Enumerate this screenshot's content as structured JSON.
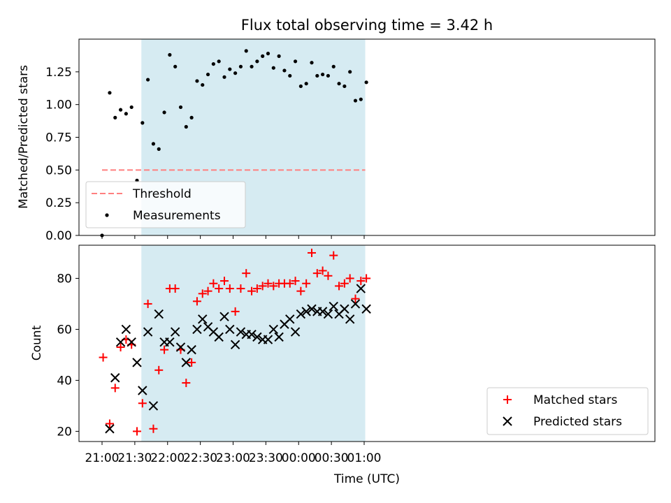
{
  "chart_data": [
    {
      "type": "scatter",
      "title": "Flux total observing time = 3.42 h",
      "xlabel": "",
      "ylabel": "Matched/Predicted stars",
      "ylim": [
        0,
        1.5
      ],
      "yticks": [
        "0.00",
        "0.25",
        "0.50",
        "0.75",
        "1.00",
        "1.25"
      ],
      "shaded_region": {
        "x": [
          "21:36",
          "01:01"
        ],
        "color": "#add8e6"
      },
      "threshold": {
        "name": "Threshold",
        "value": 0.5,
        "x": [
          "21:00",
          "01:01"
        ],
        "color": "#ff7f7f",
        "style": "dashed"
      },
      "legend": {
        "placement": "lower-left",
        "entries": [
          "Threshold",
          "Measurements"
        ]
      },
      "series": [
        {
          "name": "Measurements",
          "color": "#000000",
          "marker": "dot",
          "x": [
            "21:00",
            "21:07",
            "21:12",
            "21:17",
            "21:22",
            "21:27",
            "21:32",
            "21:37",
            "21:42",
            "21:47",
            "21:52",
            "21:57",
            "22:02",
            "22:07",
            "22:12",
            "22:17",
            "22:22",
            "22:27",
            "22:32",
            "22:37",
            "22:42",
            "22:47",
            "22:52",
            "22:57",
            "23:02",
            "23:07",
            "23:12",
            "23:17",
            "23:22",
            "23:27",
            "23:32",
            "23:37",
            "23:42",
            "23:47",
            "23:52",
            "23:57",
            "00:02",
            "00:07",
            "00:12",
            "00:17",
            "00:22",
            "00:27",
            "00:32",
            "00:37",
            "00:42",
            "00:47",
            "00:52",
            "00:57",
            "01:02"
          ],
          "values": [
            0.0,
            1.09,
            0.9,
            0.96,
            0.93,
            0.98,
            0.42,
            0.86,
            1.19,
            0.7,
            0.66,
            0.94,
            1.38,
            1.29,
            0.98,
            0.83,
            0.9,
            1.18,
            1.15,
            1.23,
            1.31,
            1.33,
            1.21,
            1.27,
            1.24,
            1.29,
            1.41,
            1.29,
            1.33,
            1.37,
            1.39,
            1.28,
            1.37,
            1.26,
            1.22,
            1.33,
            1.14,
            1.16,
            1.32,
            1.22,
            1.23,
            1.22,
            1.29,
            1.16,
            1.14,
            1.25,
            1.03,
            1.04,
            1.17
          ]
        }
      ]
    },
    {
      "type": "scatter",
      "xlabel": "Time (UTC)",
      "ylabel": "Count",
      "ylim": [
        16,
        93
      ],
      "yticks": [
        "20",
        "40",
        "60",
        "80"
      ],
      "xticks": [
        "21:00",
        "21:30",
        "22:00",
        "22:30",
        "23:00",
        "23:30",
        "00:00",
        "00:30",
        "01:00"
      ],
      "shaded_region": {
        "x": [
          "21:36",
          "01:01"
        ],
        "color": "#add8e6"
      },
      "legend": {
        "placement": "lower-right",
        "entries": [
          "Matched stars",
          "Predicted stars"
        ]
      },
      "series": [
        {
          "name": "Matched stars",
          "color": "#ff0000",
          "marker": "plus",
          "x": [
            "21:01",
            "21:07",
            "21:12",
            "21:17",
            "21:22",
            "21:27",
            "21:32",
            "21:37",
            "21:42",
            "21:47",
            "21:52",
            "21:57",
            "22:02",
            "22:07",
            "22:12",
            "22:17",
            "22:22",
            "22:27",
            "22:32",
            "22:37",
            "22:42",
            "22:47",
            "22:52",
            "22:57",
            "23:02",
            "23:07",
            "23:12",
            "23:17",
            "23:22",
            "23:27",
            "23:32",
            "23:37",
            "23:42",
            "23:47",
            "23:52",
            "23:57",
            "00:02",
            "00:07",
            "00:12",
            "00:17",
            "00:22",
            "00:27",
            "00:32",
            "00:37",
            "00:42",
            "00:47",
            "00:52",
            "00:57",
            "01:02"
          ],
          "values": [
            49,
            23,
            37,
            53,
            56,
            54,
            20,
            31,
            70,
            21,
            44,
            52,
            76,
            76,
            52,
            39,
            47,
            71,
            74,
            75,
            78,
            76,
            79,
            76,
            67,
            76,
            82,
            75,
            76,
            77,
            78,
            77,
            78,
            78,
            78,
            79,
            75,
            78,
            90,
            82,
            83,
            81,
            89,
            77,
            78,
            80,
            72,
            79,
            80
          ]
        },
        {
          "name": "Predicted stars",
          "color": "#000000",
          "marker": "x",
          "x": [
            "21:07",
            "21:12",
            "21:17",
            "21:22",
            "21:27",
            "21:32",
            "21:37",
            "21:42",
            "21:47",
            "21:52",
            "21:57",
            "22:02",
            "22:07",
            "22:12",
            "22:17",
            "22:22",
            "22:27",
            "22:32",
            "22:37",
            "22:42",
            "22:47",
            "22:52",
            "22:57",
            "23:02",
            "23:07",
            "23:12",
            "23:17",
            "23:22",
            "23:27",
            "23:32",
            "23:37",
            "23:42",
            "23:47",
            "23:52",
            "23:57",
            "00:02",
            "00:07",
            "00:12",
            "00:17",
            "00:22",
            "00:27",
            "00:32",
            "00:37",
            "00:42",
            "00:47",
            "00:52",
            "00:57",
            "01:02"
          ],
          "values": [
            21,
            41,
            55,
            60,
            55,
            47,
            36,
            59,
            30,
            66,
            55,
            55,
            59,
            53,
            47,
            52,
            60,
            64,
            61,
            59,
            57,
            65,
            60,
            54,
            59,
            58,
            58,
            57,
            56,
            56,
            60,
            57,
            62,
            64,
            59,
            66,
            67,
            68,
            67,
            67,
            66,
            69,
            66,
            68,
            64,
            70,
            76,
            68
          ]
        }
      ]
    }
  ]
}
